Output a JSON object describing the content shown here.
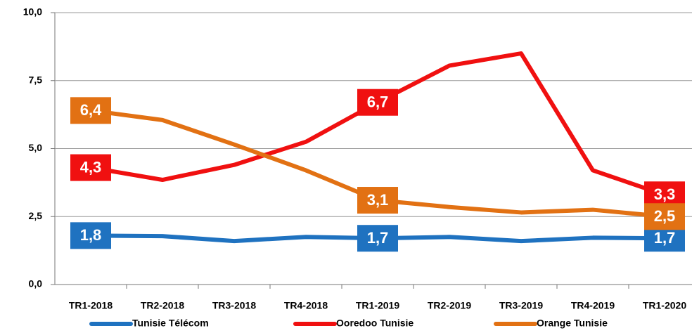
{
  "chart_data": {
    "type": "line",
    "categories": [
      "TR1-2018",
      "TR2-2018",
      "TR3-2018",
      "TR4-2018",
      "TR1-2019",
      "TR2-2019",
      "TR3-2019",
      "TR4-2019",
      "TR1-2020"
    ],
    "series": [
      {
        "name": "Tunisie Télécom",
        "color": "#1f72c0",
        "values": [
          1.8,
          1.78,
          1.6,
          1.75,
          1.7,
          1.75,
          1.6,
          1.72,
          1.7
        ],
        "value_labels": [
          "1,8",
          null,
          null,
          null,
          "1,7",
          null,
          null,
          null,
          "1,7"
        ]
      },
      {
        "name": "Ooredoo Tunisie",
        "color": "#f01010",
        "values": [
          4.3,
          3.85,
          4.4,
          5.25,
          6.7,
          8.05,
          8.5,
          4.2,
          3.3
        ],
        "value_labels": [
          "4,3",
          null,
          null,
          null,
          "6,7",
          null,
          null,
          null,
          "3,3"
        ]
      },
      {
        "name": "Orange Tunisie",
        "color": "#e27113",
        "values": [
          6.4,
          6.05,
          5.15,
          4.2,
          3.1,
          2.85,
          2.65,
          2.75,
          2.5
        ],
        "value_labels": [
          "6,4",
          null,
          null,
          null,
          "3,1",
          null,
          null,
          null,
          "2,5"
        ]
      }
    ],
    "ylim": [
      0,
      10
    ],
    "yticks": [
      {
        "value": 0,
        "label": "0,0"
      },
      {
        "value": 2.5,
        "label": "2,5"
      },
      {
        "value": 5,
        "label": "5,0"
      },
      {
        "value": 7.5,
        "label": "7,5"
      },
      {
        "value": 10,
        "label": "10,0"
      }
    ],
    "grid": true,
    "legend": "bottom"
  }
}
